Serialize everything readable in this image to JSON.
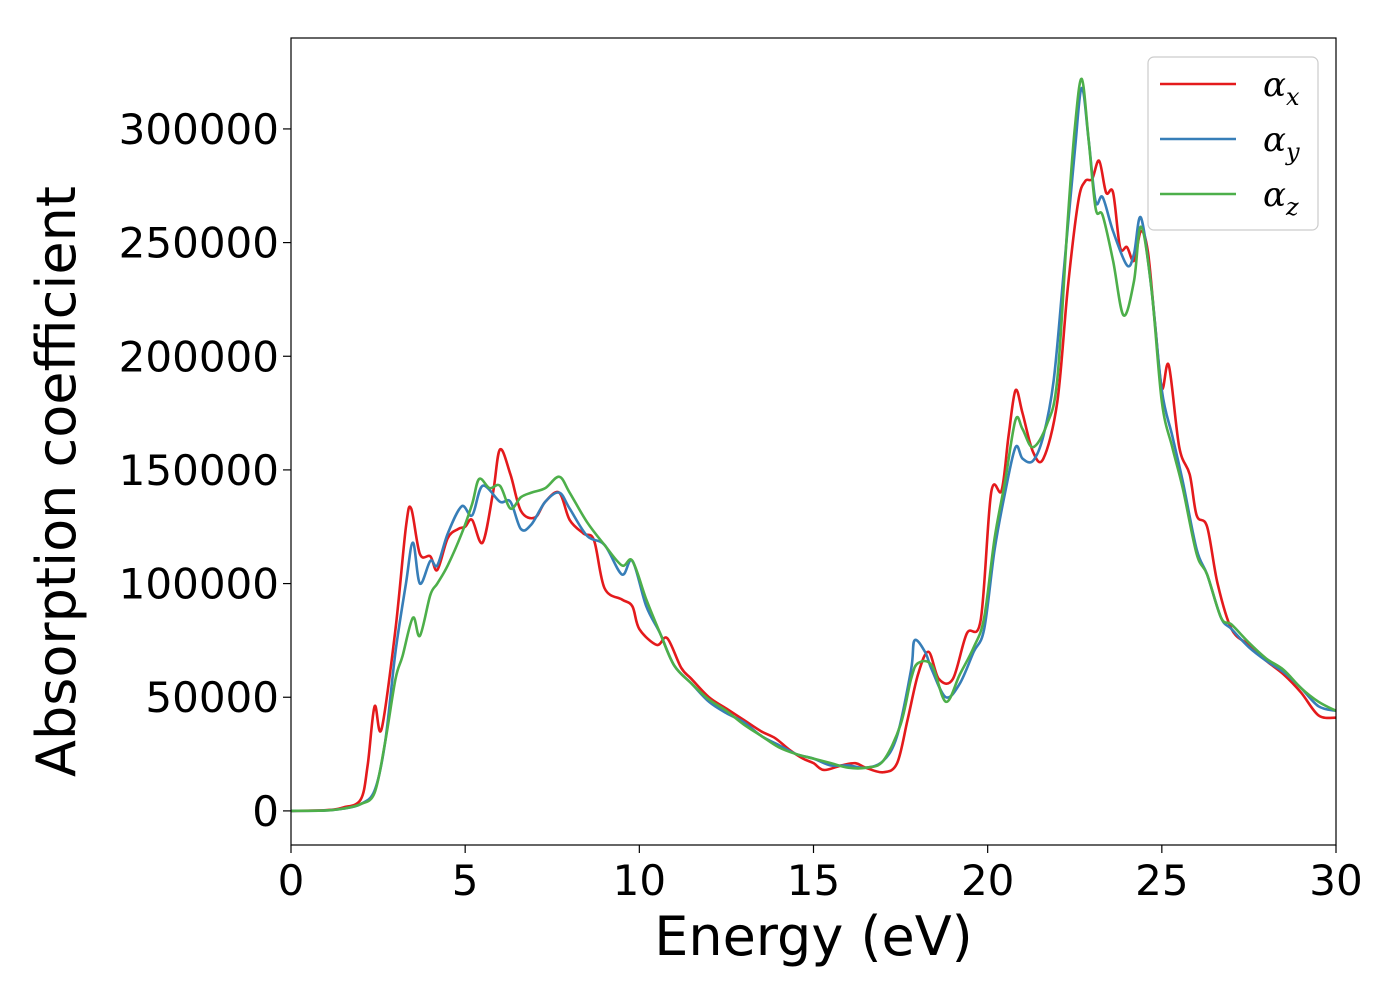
{
  "chart_data": {
    "type": "line",
    "title": "",
    "xlabel": "Energy (eV)",
    "ylabel": "Absorption coefficient",
    "xlim": [
      0,
      30
    ],
    "ylim": [
      -15000,
      340000
    ],
    "xticks": [
      0,
      5,
      10,
      15,
      20,
      25,
      30
    ],
    "yticks": [
      0,
      50000,
      100000,
      150000,
      200000,
      250000,
      300000
    ],
    "grid": false,
    "legend_position": "top-right",
    "series": [
      {
        "name": "αx",
        "name_base": "α",
        "name_sub": "x",
        "color": "#e41a1c",
        "points": [
          [
            0,
            0
          ],
          [
            1,
            300
          ],
          [
            1.5,
            1500
          ],
          [
            2.0,
            5000
          ],
          [
            2.2,
            20000
          ],
          [
            2.4,
            46000
          ],
          [
            2.6,
            36000
          ],
          [
            3.0,
            80000
          ],
          [
            3.3,
            125000
          ],
          [
            3.45,
            133000
          ],
          [
            3.7,
            113000
          ],
          [
            4.0,
            112000
          ],
          [
            4.2,
            106000
          ],
          [
            4.5,
            120000
          ],
          [
            4.8,
            124000
          ],
          [
            5.0,
            125000
          ],
          [
            5.2,
            128000
          ],
          [
            5.5,
            118000
          ],
          [
            5.8,
            140000
          ],
          [
            6.0,
            159000
          ],
          [
            6.3,
            148000
          ],
          [
            6.6,
            132000
          ],
          [
            7.0,
            129000
          ],
          [
            7.3,
            136000
          ],
          [
            7.7,
            140000
          ],
          [
            8.0,
            128000
          ],
          [
            8.4,
            122000
          ],
          [
            8.7,
            119000
          ],
          [
            9.0,
            98000
          ],
          [
            9.5,
            93000
          ],
          [
            9.8,
            90000
          ],
          [
            10.0,
            80000
          ],
          [
            10.5,
            73000
          ],
          [
            10.8,
            76000
          ],
          [
            11.2,
            63000
          ],
          [
            11.5,
            58000
          ],
          [
            12.0,
            50000
          ],
          [
            12.5,
            45000
          ],
          [
            13.0,
            40000
          ],
          [
            13.5,
            35000
          ],
          [
            13.9,
            32000
          ],
          [
            14.3,
            27000
          ],
          [
            14.7,
            23000
          ],
          [
            15.0,
            21000
          ],
          [
            15.3,
            18000
          ],
          [
            15.8,
            20000
          ],
          [
            16.2,
            21000
          ],
          [
            16.5,
            19000
          ],
          [
            17.0,
            17000
          ],
          [
            17.4,
            21000
          ],
          [
            17.7,
            40000
          ],
          [
            18.0,
            60000
          ],
          [
            18.3,
            70000
          ],
          [
            18.6,
            58000
          ],
          [
            19.0,
            58000
          ],
          [
            19.4,
            78000
          ],
          [
            19.8,
            84000
          ],
          [
            20.1,
            140000
          ],
          [
            20.4,
            141000
          ],
          [
            20.6,
            165000
          ],
          [
            20.8,
            185000
          ],
          [
            21.0,
            175000
          ],
          [
            21.3,
            158000
          ],
          [
            21.6,
            155000
          ],
          [
            22.0,
            180000
          ],
          [
            22.3,
            230000
          ],
          [
            22.6,
            268000
          ],
          [
            22.8,
            277000
          ],
          [
            23.0,
            278000
          ],
          [
            23.2,
            286000
          ],
          [
            23.4,
            272000
          ],
          [
            23.6,
            272000
          ],
          [
            23.8,
            248000
          ],
          [
            24.0,
            248000
          ],
          [
            24.2,
            242000
          ],
          [
            24.4,
            255000
          ],
          [
            24.6,
            246000
          ],
          [
            24.8,
            215000
          ],
          [
            25.0,
            186000
          ],
          [
            25.2,
            196000
          ],
          [
            25.5,
            160000
          ],
          [
            25.8,
            148000
          ],
          [
            26.0,
            130000
          ],
          [
            26.3,
            125000
          ],
          [
            26.6,
            100000
          ],
          [
            27.0,
            80000
          ],
          [
            27.5,
            73000
          ],
          [
            28.0,
            66000
          ],
          [
            28.5,
            60000
          ],
          [
            29.0,
            52000
          ],
          [
            29.5,
            42000
          ],
          [
            30.0,
            41000
          ]
        ]
      },
      {
        "name": "αy",
        "name_base": "α",
        "name_sub": "y",
        "color": "#377eb8",
        "points": [
          [
            0,
            0
          ],
          [
            1,
            200
          ],
          [
            1.5,
            1000
          ],
          [
            2.0,
            3000
          ],
          [
            2.4,
            9000
          ],
          [
            2.7,
            30000
          ],
          [
            3.0,
            70000
          ],
          [
            3.3,
            100000
          ],
          [
            3.5,
            118000
          ],
          [
            3.7,
            100000
          ],
          [
            4.0,
            110000
          ],
          [
            4.2,
            108000
          ],
          [
            4.5,
            122000
          ],
          [
            4.9,
            134000
          ],
          [
            5.2,
            130000
          ],
          [
            5.5,
            143000
          ],
          [
            6.0,
            136000
          ],
          [
            6.3,
            136000
          ],
          [
            6.6,
            124000
          ],
          [
            6.9,
            126000
          ],
          [
            7.3,
            136000
          ],
          [
            7.7,
            140000
          ],
          [
            8.0,
            133000
          ],
          [
            8.5,
            121000
          ],
          [
            9.0,
            117000
          ],
          [
            9.5,
            104000
          ],
          [
            9.8,
            110000
          ],
          [
            10.2,
            90000
          ],
          [
            10.6,
            78000
          ],
          [
            11.0,
            64000
          ],
          [
            11.5,
            56000
          ],
          [
            12.0,
            48000
          ],
          [
            12.5,
            43000
          ],
          [
            13.0,
            39000
          ],
          [
            13.5,
            33000
          ],
          [
            14.0,
            29000
          ],
          [
            14.5,
            25000
          ],
          [
            15.0,
            23000
          ],
          [
            15.5,
            20000
          ],
          [
            16.0,
            20000
          ],
          [
            16.5,
            19000
          ],
          [
            17.0,
            22000
          ],
          [
            17.4,
            33000
          ],
          [
            17.8,
            62000
          ],
          [
            17.9,
            75000
          ],
          [
            18.2,
            70000
          ],
          [
            18.4,
            62000
          ],
          [
            18.8,
            50000
          ],
          [
            19.2,
            56000
          ],
          [
            19.6,
            70000
          ],
          [
            19.9,
            80000
          ],
          [
            20.2,
            115000
          ],
          [
            20.5,
            140000
          ],
          [
            20.8,
            160000
          ],
          [
            21.0,
            155000
          ],
          [
            21.3,
            154000
          ],
          [
            21.6,
            165000
          ],
          [
            21.9,
            190000
          ],
          [
            22.2,
            240000
          ],
          [
            22.5,
            290000
          ],
          [
            22.7,
            318000
          ],
          [
            22.9,
            295000
          ],
          [
            23.1,
            268000
          ],
          [
            23.3,
            270000
          ],
          [
            23.6,
            255000
          ],
          [
            24.0,
            240000
          ],
          [
            24.2,
            245000
          ],
          [
            24.4,
            261000
          ],
          [
            24.7,
            230000
          ],
          [
            25.0,
            185000
          ],
          [
            25.3,
            165000
          ],
          [
            25.6,
            145000
          ],
          [
            26.0,
            115000
          ],
          [
            26.3,
            104000
          ],
          [
            26.7,
            85000
          ],
          [
            27.0,
            80000
          ],
          [
            27.5,
            72000
          ],
          [
            28.0,
            66000
          ],
          [
            28.5,
            61000
          ],
          [
            29.0,
            54000
          ],
          [
            29.5,
            46000
          ],
          [
            30.0,
            44000
          ]
        ]
      },
      {
        "name": "αz",
        "name_base": "α",
        "name_sub": "z",
        "color": "#4daf4a",
        "points": [
          [
            0,
            0
          ],
          [
            1,
            200
          ],
          [
            1.5,
            1000
          ],
          [
            2.0,
            3000
          ],
          [
            2.4,
            8000
          ],
          [
            2.7,
            30000
          ],
          [
            3.0,
            58000
          ],
          [
            3.2,
            68000
          ],
          [
            3.5,
            85000
          ],
          [
            3.7,
            77000
          ],
          [
            4.0,
            95000
          ],
          [
            4.2,
            100000
          ],
          [
            4.5,
            108000
          ],
          [
            4.9,
            122000
          ],
          [
            5.2,
            135000
          ],
          [
            5.4,
            146000
          ],
          [
            5.7,
            142000
          ],
          [
            6.0,
            143000
          ],
          [
            6.3,
            133000
          ],
          [
            6.6,
            138000
          ],
          [
            6.9,
            140000
          ],
          [
            7.3,
            142000
          ],
          [
            7.7,
            147000
          ],
          [
            8.0,
            140000
          ],
          [
            8.5,
            127000
          ],
          [
            9.0,
            117000
          ],
          [
            9.5,
            108000
          ],
          [
            9.8,
            110000
          ],
          [
            10.2,
            93000
          ],
          [
            10.6,
            78000
          ],
          [
            11.0,
            64000
          ],
          [
            11.5,
            56000
          ],
          [
            12.0,
            49000
          ],
          [
            12.5,
            44000
          ],
          [
            13.0,
            38000
          ],
          [
            13.5,
            33000
          ],
          [
            14.0,
            28000
          ],
          [
            14.5,
            25000
          ],
          [
            15.0,
            23000
          ],
          [
            15.5,
            21000
          ],
          [
            16.0,
            19000
          ],
          [
            16.5,
            19000
          ],
          [
            17.0,
            22000
          ],
          [
            17.5,
            38000
          ],
          [
            17.8,
            58000
          ],
          [
            18.0,
            65000
          ],
          [
            18.4,
            64000
          ],
          [
            18.8,
            48000
          ],
          [
            19.2,
            60000
          ],
          [
            19.6,
            72000
          ],
          [
            19.9,
            85000
          ],
          [
            20.2,
            120000
          ],
          [
            20.5,
            145000
          ],
          [
            20.8,
            172000
          ],
          [
            21.0,
            168000
          ],
          [
            21.3,
            160000
          ],
          [
            21.7,
            170000
          ],
          [
            22.0,
            190000
          ],
          [
            22.3,
            260000
          ],
          [
            22.5,
            300000
          ],
          [
            22.7,
            322000
          ],
          [
            22.9,
            295000
          ],
          [
            23.1,
            265000
          ],
          [
            23.3,
            262000
          ],
          [
            23.6,
            242000
          ],
          [
            23.9,
            218000
          ],
          [
            24.2,
            233000
          ],
          [
            24.4,
            257000
          ],
          [
            24.7,
            230000
          ],
          [
            25.0,
            180000
          ],
          [
            25.3,
            160000
          ],
          [
            25.6,
            142000
          ],
          [
            26.0,
            113000
          ],
          [
            26.3,
            104000
          ],
          [
            26.7,
            85000
          ],
          [
            27.0,
            82000
          ],
          [
            27.5,
            74000
          ],
          [
            28.0,
            67000
          ],
          [
            28.5,
            62000
          ],
          [
            29.0,
            54000
          ],
          [
            29.5,
            48000
          ],
          [
            30.0,
            44000
          ]
        ]
      }
    ]
  }
}
